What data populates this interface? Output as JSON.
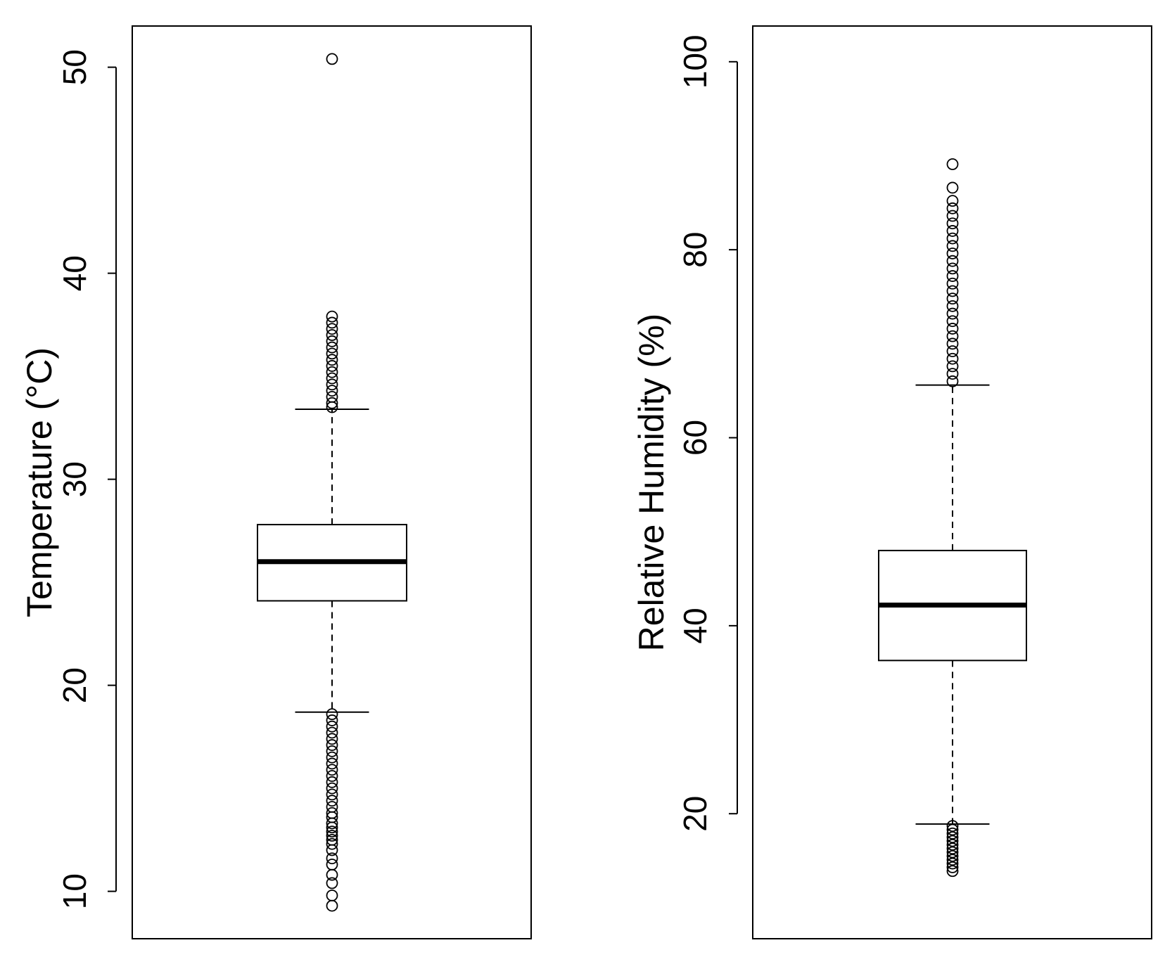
{
  "chart_data": [
    {
      "type": "box",
      "ylabel": "Temperature (°C)",
      "yticks": [
        10,
        20,
        30,
        40,
        50
      ],
      "ylim": [
        7.7,
        52.0
      ],
      "grid": false,
      "box": {
        "whisker_low": 18.7,
        "q1": 24.1,
        "median": 26.0,
        "q3": 27.8,
        "whisker_high": 33.4
      },
      "outliers": [
        50.4,
        37.9,
        37.6,
        37.3,
        37.0,
        36.7,
        36.4,
        36.1,
        35.8,
        35.5,
        35.2,
        34.9,
        34.6,
        34.3,
        34.0,
        33.7,
        33.5,
        18.6,
        18.3,
        18.0,
        17.7,
        17.4,
        17.1,
        16.8,
        16.5,
        16.2,
        15.9,
        15.6,
        15.3,
        15.0,
        14.7,
        14.4,
        14.1,
        13.8,
        13.6,
        13.3,
        13.1,
        12.9,
        12.7,
        12.5,
        12.3,
        12.0,
        11.6,
        11.3,
        10.8,
        10.4,
        9.8,
        9.3
      ]
    },
    {
      "type": "box",
      "ylabel": "Relative Humidity (%)",
      "yticks": [
        20,
        40,
        60,
        80,
        100
      ],
      "ylim": [
        6.7,
        103.8
      ],
      "grid": false,
      "box": {
        "whisker_low": 18.9,
        "q1": 36.3,
        "median": 42.2,
        "q3": 48.0,
        "whisker_high": 65.6
      },
      "outliers": [
        89.1,
        86.6,
        85.2,
        84.4,
        83.6,
        82.8,
        82.0,
        81.2,
        80.4,
        79.6,
        78.8,
        78.0,
        77.2,
        76.4,
        75.6,
        74.8,
        74.0,
        73.2,
        72.4,
        71.6,
        70.8,
        70.0,
        69.2,
        68.4,
        67.6,
        66.8,
        66.0,
        18.7,
        18.3,
        17.9,
        17.5,
        17.1,
        16.7,
        16.3,
        15.9,
        15.5,
        15.1,
        14.7,
        14.3,
        13.9
      ]
    }
  ]
}
